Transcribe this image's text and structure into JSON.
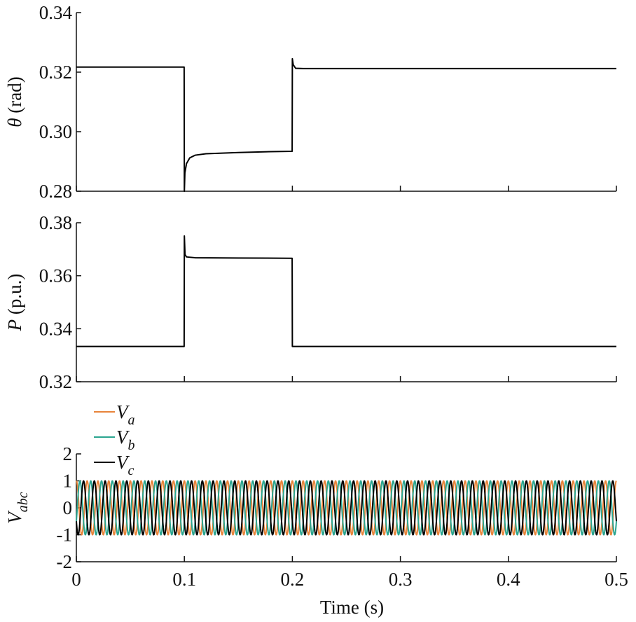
{
  "chart_data": [
    {
      "type": "line",
      "ylabel_symbol": "θ",
      "ylabel_unit": " (rad)",
      "xlim": [
        0,
        0.5
      ],
      "ylim": [
        0.28,
        0.34
      ],
      "yticks": [
        "0.28",
        "0.30",
        "0.32",
        "0.34"
      ],
      "xticks": [
        0,
        0.1,
        0.2,
        0.3,
        0.4,
        0.5
      ],
      "series": [
        {
          "color": "#000000",
          "points": [
            [
              0,
              0.3217
            ],
            [
              0.0998,
              0.3217
            ],
            [
              0.1,
              0.28
            ],
            [
              0.1005,
              0.2862
            ],
            [
              0.102,
              0.2893
            ],
            [
              0.105,
              0.2912
            ],
            [
              0.11,
              0.2921
            ],
            [
              0.12,
              0.2926
            ],
            [
              0.15,
              0.293
            ],
            [
              0.18,
              0.2933
            ],
            [
              0.1998,
              0.2934
            ],
            [
              0.2,
              0.3245
            ],
            [
              0.2008,
              0.3225
            ],
            [
              0.203,
              0.3213
            ],
            [
              0.21,
              0.3212
            ],
            [
              0.3,
              0.3212
            ],
            [
              0.4,
              0.3212
            ],
            [
              0.5,
              0.3212
            ]
          ]
        }
      ]
    },
    {
      "type": "line",
      "ylabel_symbol": "P",
      "ylabel_unit": " (p.u.)",
      "xlim": [
        0,
        0.5
      ],
      "ylim": [
        0.32,
        0.38
      ],
      "yticks": [
        "0.32",
        "0.34",
        "0.36",
        "0.38"
      ],
      "xticks": [
        0,
        0.1,
        0.2,
        0.3,
        0.4,
        0.5
      ],
      "series": [
        {
          "color": "#000000",
          "points": [
            [
              0,
              0.3333
            ],
            [
              0.0998,
              0.3333
            ],
            [
              0.1,
              0.375
            ],
            [
              0.1006,
              0.368
            ],
            [
              0.102,
              0.3671
            ],
            [
              0.11,
              0.3668
            ],
            [
              0.15,
              0.3667
            ],
            [
              0.1998,
              0.3666
            ],
            [
              0.2,
              0.3333
            ],
            [
              0.21,
              0.3333
            ],
            [
              0.3,
              0.3333
            ],
            [
              0.4,
              0.3333
            ],
            [
              0.5,
              0.3333
            ]
          ]
        }
      ]
    },
    {
      "type": "line",
      "ylabel_symbol": "V",
      "ylabel_sub": "abc",
      "xlabel": "Time (s)",
      "xlim": [
        0,
        0.5
      ],
      "ylim": [
        -2,
        2
      ],
      "yticks": [
        "-2",
        "-1",
        "0",
        "1",
        "2"
      ],
      "xticks": [
        0,
        0.1,
        0.2,
        0.3,
        0.4,
        0.5
      ],
      "xticklabels": [
        "0",
        "0.1",
        "0.2",
        "0.3",
        "0.4",
        "0.5"
      ],
      "frequency_hz": 100,
      "amplitude": 1,
      "series": [
        {
          "name": "V",
          "sub": "a",
          "color": "#e8843a",
          "phase_deg": 0
        },
        {
          "name": "V",
          "sub": "b",
          "color": "#2aa58f",
          "phase_deg": -120
        },
        {
          "name": "V",
          "sub": "c",
          "color": "#000000",
          "phase_deg": 120
        }
      ]
    }
  ]
}
